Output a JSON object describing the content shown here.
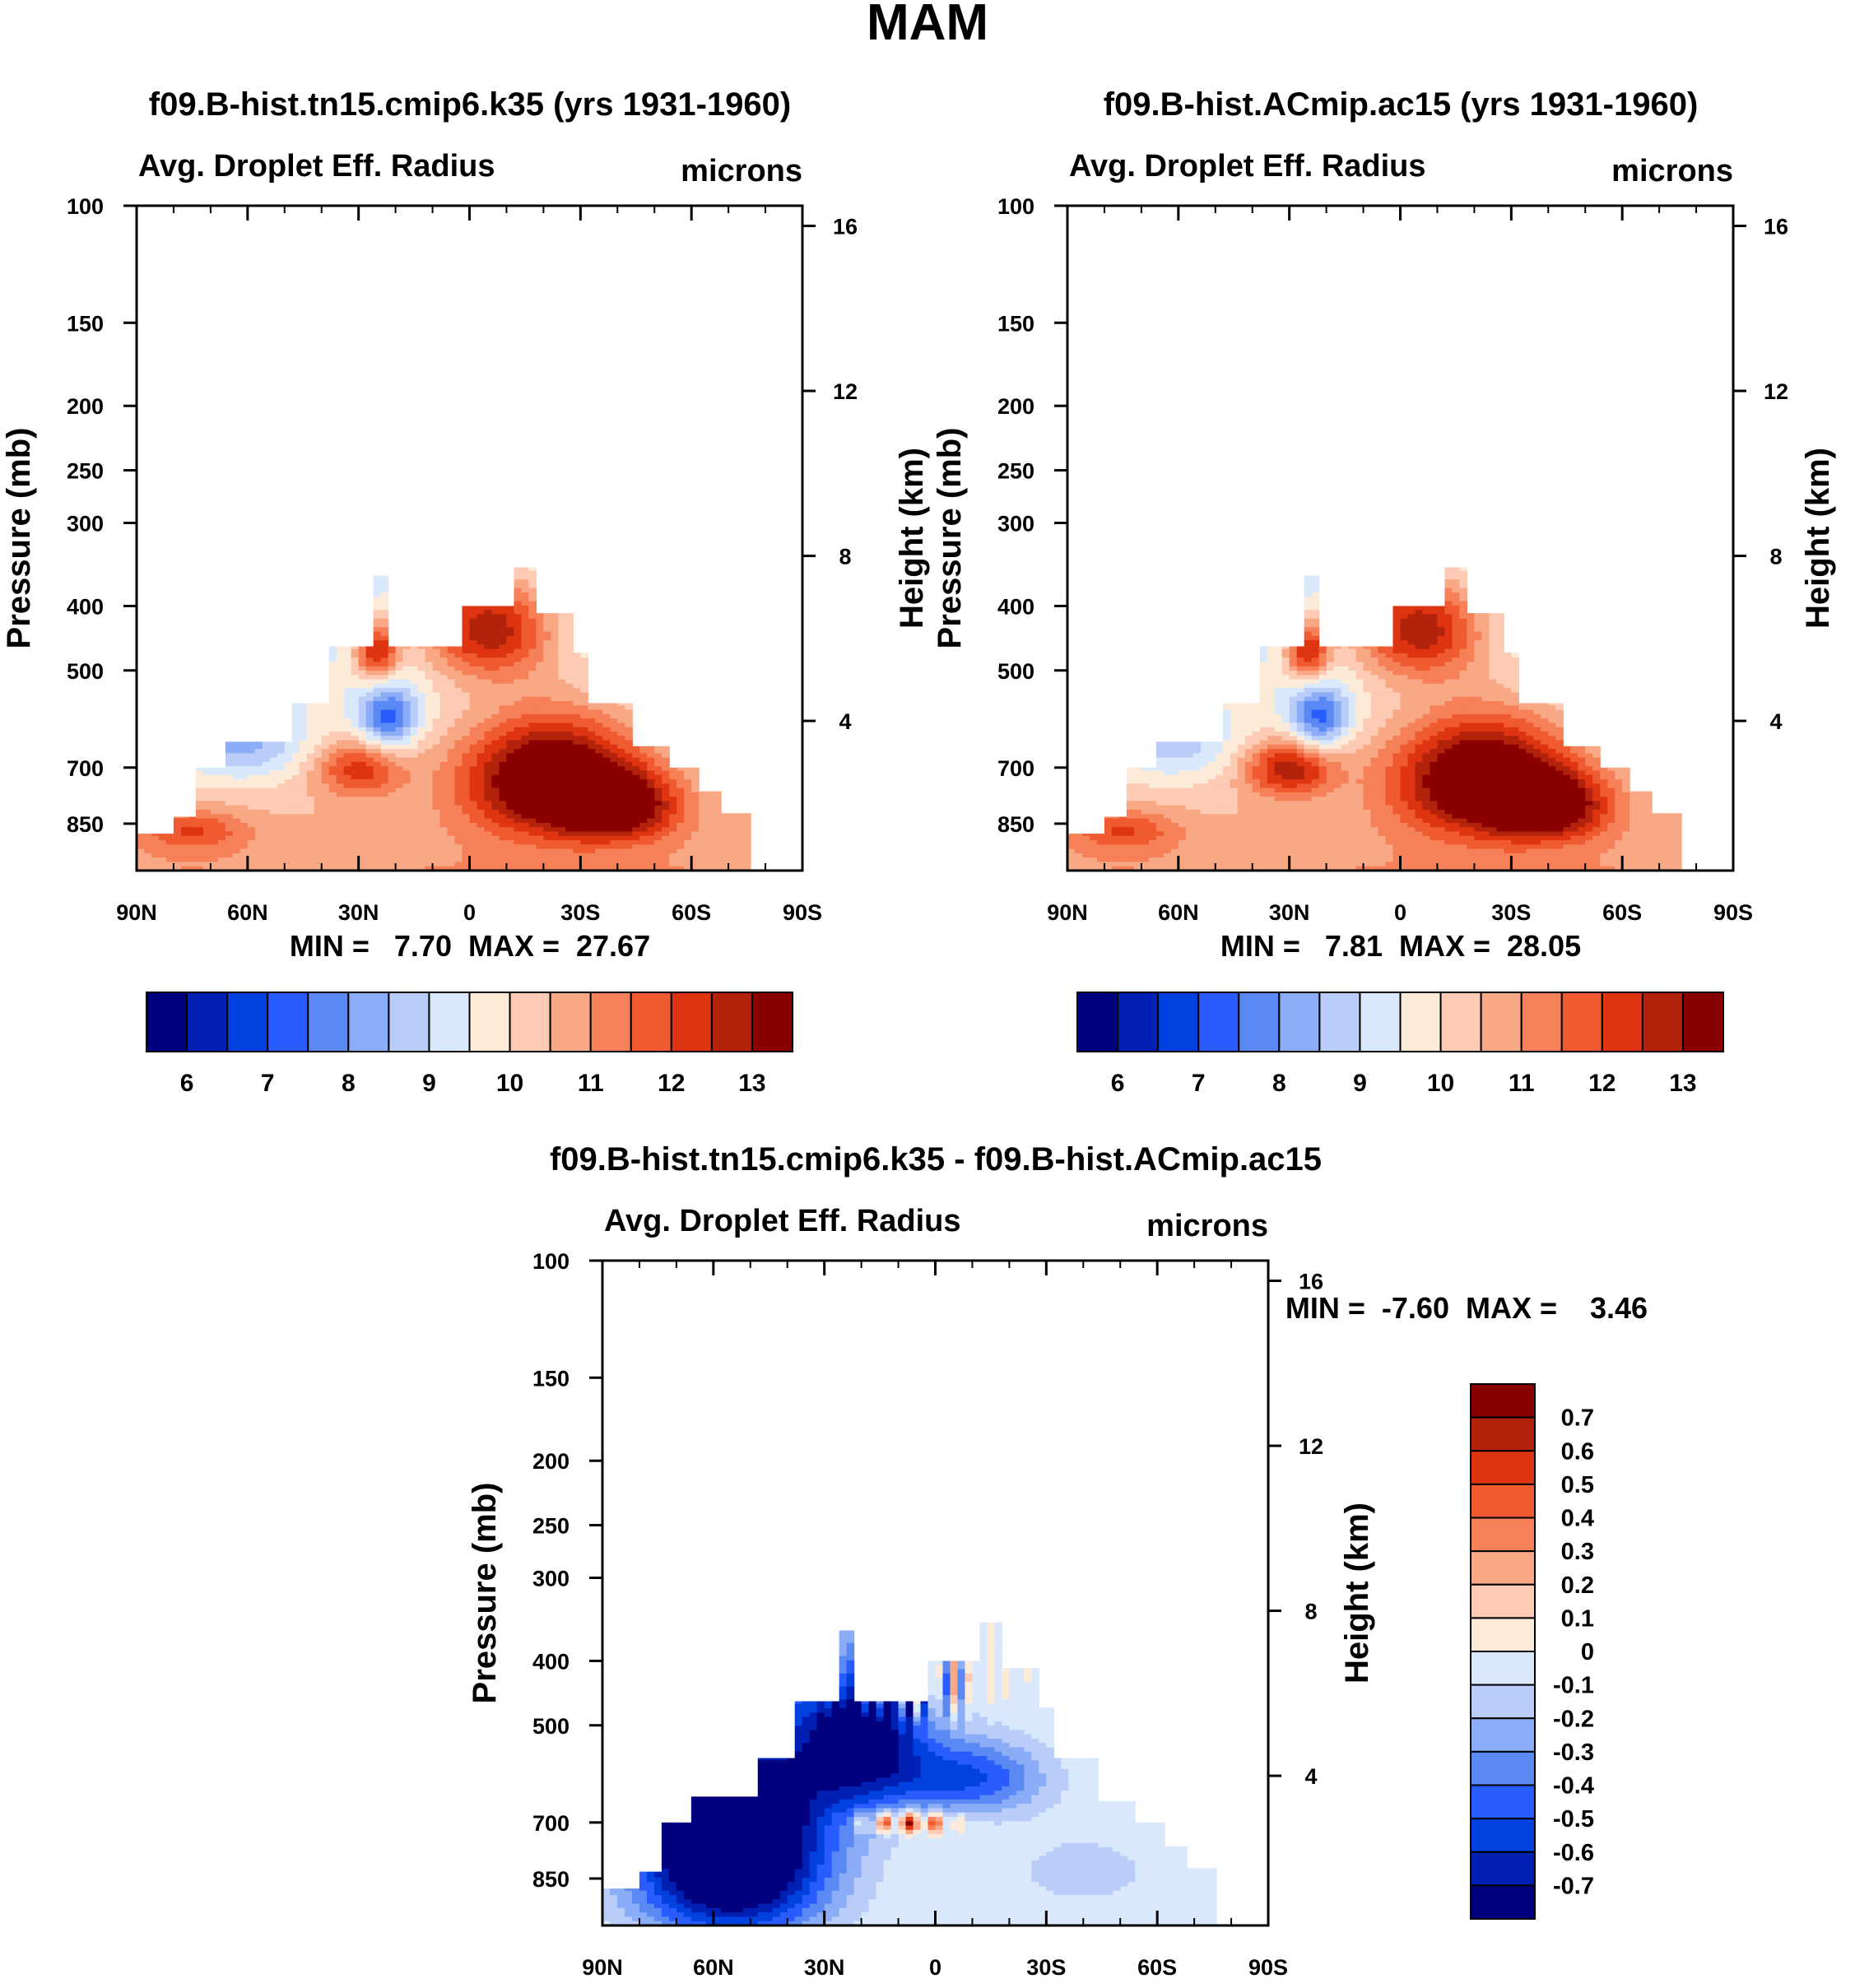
{
  "figure_title": "MAM",
  "colors": {
    "ctrl_scale": [
      "#00007f",
      "#0020b4",
      "#0041e0",
      "#285cff",
      "#5b89f4",
      "#8bacf7",
      "#b9cdf8",
      "#d9e9fb",
      "#fdebda",
      "#fdcab4",
      "#f9a886",
      "#f68058",
      "#ef5a30",
      "#de3411",
      "#b3220b",
      "#8a0000"
    ],
    "diff_scale": [
      "#00007f",
      "#0020b4",
      "#0041e0",
      "#285cff",
      "#5b89f4",
      "#8bacf7",
      "#b9cdf8",
      "#d9e9fb",
      "#fdebda",
      "#fdcab4",
      "#f9a886",
      "#f68058",
      "#ef5a30",
      "#de3411",
      "#b3220b",
      "#8a0000"
    ]
  },
  "chart_data": [
    {
      "id": "panel1",
      "type": "heatmap",
      "title": "f09.B-hist.tn15.cmip6.k35 (yrs 1931-1960)",
      "left_string": "Avg. Droplet Eff. Radius",
      "right_string": "microns",
      "ylabel": "Pressure (mb)",
      "ylabel_right": "Height (km)",
      "xticks": [
        "90N",
        "60N",
        "30N",
        "0",
        "30S",
        "60S",
        "90S"
      ],
      "yticks": [
        "100",
        "150",
        "200",
        "250",
        "300",
        "400",
        "500",
        "700",
        "850"
      ],
      "yticks_right": [
        "16",
        "12",
        "8",
        "4"
      ],
      "xlim": [
        90,
        -90
      ],
      "ylim": [
        100,
        1000
      ],
      "stats_text": "MIN =   7.70  MAX =  27.67",
      "min": 7.7,
      "max": 27.67,
      "colorbar": {
        "orientation": "horizontal",
        "levels": [
          5.5,
          6,
          6.5,
          7,
          7.5,
          8,
          8.5,
          9,
          9.5,
          10,
          10.5,
          11,
          11.5,
          12,
          12.5,
          13
        ],
        "labels": [
          "6",
          "7",
          "8",
          "9",
          "10",
          "11",
          "12",
          "13"
        ]
      },
      "features": [
        {
          "lat": 22,
          "p": 580,
          "value": 7.8
        },
        {
          "lat": 28,
          "p": 690,
          "value": 11.3
        },
        {
          "lat": 70,
          "p": 700,
          "value": 9.0
        },
        {
          "lat": -20,
          "p": 700,
          "value": 13.0
        }
      ]
    },
    {
      "id": "panel2",
      "type": "heatmap",
      "title": "f09.B-hist.ACmip.ac15 (yrs 1931-1960)",
      "left_string": "Avg. Droplet Eff. Radius",
      "right_string": "microns",
      "ylabel": "Pressure (mb)",
      "ylabel_right": "Height (km)",
      "xticks": [
        "90N",
        "60N",
        "30N",
        "0",
        "30S",
        "60S",
        "90S"
      ],
      "yticks": [
        "100",
        "150",
        "200",
        "250",
        "300",
        "400",
        "500",
        "700",
        "850"
      ],
      "yticks_right": [
        "16",
        "12",
        "8",
        "4"
      ],
      "xlim": [
        90,
        -90
      ],
      "ylim": [
        100,
        1000
      ],
      "stats_text": "MIN =   7.81  MAX =  28.05",
      "min": 7.81,
      "max": 28.05,
      "colorbar": {
        "orientation": "horizontal",
        "levels": [
          5.5,
          6,
          6.5,
          7,
          7.5,
          8,
          8.5,
          9,
          9.5,
          10,
          10.5,
          11,
          11.5,
          12,
          12.5,
          13
        ],
        "labels": [
          "6",
          "7",
          "8",
          "9",
          "10",
          "11",
          "12",
          "13"
        ]
      },
      "features": [
        {
          "lat": 22,
          "p": 580,
          "value": 7.9
        },
        {
          "lat": 30,
          "p": 700,
          "value": 11.8
        },
        {
          "lat": 60,
          "p": 640,
          "value": 9.2
        },
        {
          "lat": -20,
          "p": 700,
          "value": 13.0
        }
      ]
    },
    {
      "id": "panel3",
      "type": "heatmap",
      "title": "f09.B-hist.tn15.cmip6.k35 - f09.B-hist.ACmip.ac15",
      "left_string": "Avg. Droplet Eff. Radius",
      "right_string": "microns",
      "ylabel": "Pressure (mb)",
      "ylabel_right": "Height (km)",
      "xticks": [
        "90N",
        "60N",
        "30N",
        "0",
        "30S",
        "60S",
        "90S"
      ],
      "yticks": [
        "100",
        "150",
        "200",
        "250",
        "300",
        "400",
        "500",
        "700",
        "850"
      ],
      "yticks_right": [
        "16",
        "12",
        "8",
        "4"
      ],
      "xlim": [
        90,
        -90
      ],
      "ylim": [
        100,
        1000
      ],
      "stats_text": "MIN =  -7.60  MAX =    3.46",
      "min": -7.6,
      "max": 3.46,
      "colorbar": {
        "orientation": "vertical",
        "levels": [
          -0.7,
          -0.6,
          -0.5,
          -0.4,
          -0.3,
          -0.2,
          -0.1,
          0,
          0.1,
          0.2,
          0.3,
          0.4,
          0.5,
          0.6,
          0.7
        ],
        "labels": [
          "0.7",
          "0.6",
          "0.5",
          "0.4",
          "0.3",
          "0.2",
          "0.1",
          "0",
          "-0.1",
          "-0.2",
          "-0.3",
          "-0.4",
          "-0.5",
          "-0.6",
          "-0.7"
        ]
      },
      "features": [
        {
          "lat": 45,
          "p": 750,
          "value": -0.8
        },
        {
          "lat": 8,
          "p": 700,
          "value": 0.6
        },
        {
          "lat": 10,
          "p": 420,
          "value": 0.5
        },
        {
          "lat": -35,
          "p": 820,
          "value": -0.1
        }
      ]
    }
  ]
}
